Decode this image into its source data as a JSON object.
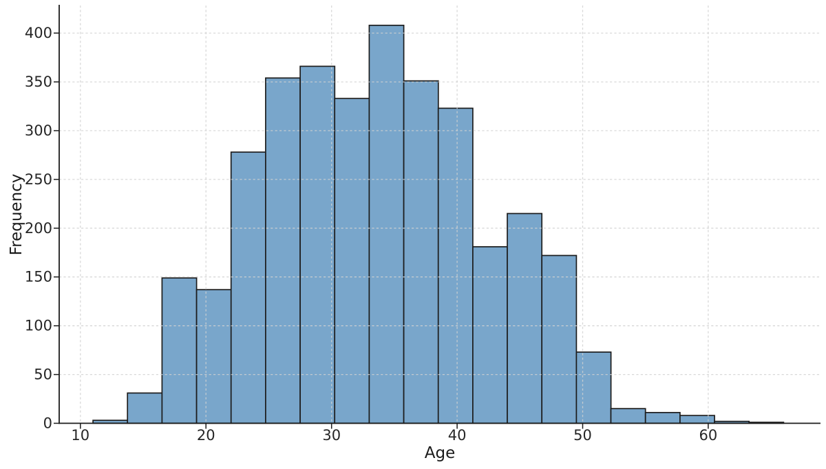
{
  "chart_data": {
    "type": "bar",
    "subtype": "histogram",
    "title": "",
    "xlabel": "Age",
    "ylabel": "Frequency",
    "bin_edges": [
      11.0,
      13.75,
      16.5,
      19.25,
      22.0,
      24.75,
      27.5,
      30.25,
      33.0,
      35.75,
      38.5,
      41.25,
      44.0,
      46.75,
      49.5,
      52.25,
      55.0,
      57.75,
      60.5,
      63.25,
      66.0
    ],
    "counts": [
      3,
      31,
      149,
      137,
      278,
      354,
      366,
      333,
      408,
      351,
      323,
      181,
      215,
      172,
      73,
      15,
      11,
      8,
      2,
      1
    ],
    "x_ticks": [
      10,
      20,
      30,
      40,
      50,
      60
    ],
    "y_ticks": [
      0,
      50,
      100,
      150,
      200,
      250,
      300,
      350,
      400
    ],
    "xlim": [
      8.31,
      68.94
    ],
    "ylim": [
      0,
      428.3
    ],
    "grid": true,
    "grid_style": "dashed",
    "legend": false,
    "colors": {
      "bar_fill": "#79a6cb",
      "bar_edge": "#1c1c1c",
      "grid": "#d2d2d2",
      "spine": "#1a1a1a",
      "tick_label": "#262626"
    }
  }
}
